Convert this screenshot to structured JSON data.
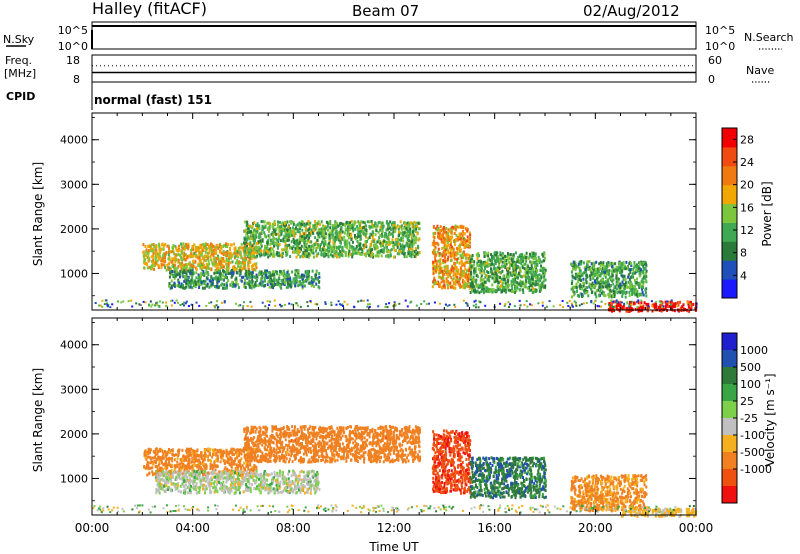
{
  "header": {
    "site": "Halley (fitACF)",
    "beam": "Beam 07",
    "date": "02/Aug/2012"
  },
  "status": {
    "nsky_label": "N.Sky",
    "nsearch_label": "N.Search",
    "freq_label": "Freq.",
    "freq_unit": "[MHz]",
    "nave_label": "Nave",
    "cpid_label": "CPID",
    "cpid_value": "normal (fast) 151",
    "noise_ticks_left": [
      "10^5",
      "10^0"
    ],
    "noise_ticks_right": [
      "10^5",
      "10^0"
    ],
    "freq_ticks": [
      "18",
      "8"
    ],
    "nave_ticks": [
      "60",
      "0"
    ],
    "noise_level_fraction": 0.85,
    "freq_level_fraction": 0.35,
    "nave_level_fraction": 0.6
  },
  "colors": {
    "power": [
      "#1a1aff",
      "#1f4fb8",
      "#2a7a3a",
      "#3ea852",
      "#7bc63c",
      "#f2a600",
      "#f07a10",
      "#f04b10",
      "#f00000"
    ],
    "velocity": [
      "#1f1fd0",
      "#2050b0",
      "#2f7a3a",
      "#3aa545",
      "#7cd04a",
      "#c0c0c0",
      "#f5b020",
      "#f08020",
      "#f05010",
      "#f01010"
    ]
  },
  "chart_data": [
    {
      "type": "heatmap",
      "name": "power",
      "xlabel": "",
      "ylabel": "Slant Range [km]",
      "xlim": [
        "00:00",
        "24:00"
      ],
      "ylim": [
        180,
        4600
      ],
      "yticks": [
        "1000",
        "2000",
        "3000",
        "4000"
      ],
      "colorbar_label": "Power [dB]",
      "colorbar_ticks": [
        "4",
        "8",
        "12",
        "16",
        "20",
        "24",
        "28"
      ],
      "colorbar_range": [
        0,
        30
      ],
      "features": [
        {
          "from": "02:00",
          "to": "06:30",
          "range_km": [
            1100,
            1700
          ],
          "power_db": 18
        },
        {
          "from": "03:00",
          "to": "09:00",
          "range_km": [
            700,
            1100
          ],
          "power_db": 10
        },
        {
          "from": "06:00",
          "to": "13:00",
          "range_km": [
            1400,
            2200
          ],
          "power_db": 13
        },
        {
          "from": "13:30",
          "to": "15:00",
          "range_km": [
            700,
            2100
          ],
          "power_db": 20
        },
        {
          "from": "15:00",
          "to": "18:00",
          "range_km": [
            600,
            1500
          ],
          "power_db": 12
        },
        {
          "from": "19:00",
          "to": "22:00",
          "range_km": [
            500,
            1300
          ],
          "power_db": 11
        },
        {
          "from": "20:30",
          "to": "24:00",
          "range_km": [
            180,
            400
          ],
          "power_db": 28
        }
      ]
    },
    {
      "type": "heatmap",
      "name": "velocity",
      "xlabel": "Time UT",
      "ylabel": "Slant Range [km]",
      "xlim": [
        "00:00",
        "24:00"
      ],
      "ylim": [
        180,
        4600
      ],
      "xticks": [
        "00:00",
        "04:00",
        "08:00",
        "12:00",
        "16:00",
        "20:00",
        "00:00"
      ],
      "yticks": [
        "1000",
        "2000",
        "3000",
        "4000"
      ],
      "colorbar_label": "Velocity [m s⁻¹]",
      "colorbar_ticks": [
        "1000",
        "500",
        "100",
        "25",
        "-25",
        "-100",
        "-500",
        "-1000"
      ],
      "features": [
        {
          "from": "02:00",
          "to": "06:30",
          "range_km": [
            1100,
            1700
          ],
          "velocity": -150
        },
        {
          "from": "02:30",
          "to": "09:00",
          "range_km": [
            700,
            1200
          ],
          "velocity": 0
        },
        {
          "from": "06:00",
          "to": "13:00",
          "range_km": [
            1400,
            2200
          ],
          "velocity": -200
        },
        {
          "from": "13:30",
          "to": "15:00",
          "range_km": [
            700,
            2100
          ],
          "velocity": -600
        },
        {
          "from": "15:00",
          "to": "18:00",
          "range_km": [
            600,
            1500
          ],
          "velocity": 80
        },
        {
          "from": "19:00",
          "to": "22:00",
          "range_km": [
            300,
            1100
          ],
          "velocity": -120
        },
        {
          "from": "21:00",
          "to": "24:00",
          "range_km": [
            180,
            350
          ],
          "velocity": -40
        }
      ]
    }
  ]
}
